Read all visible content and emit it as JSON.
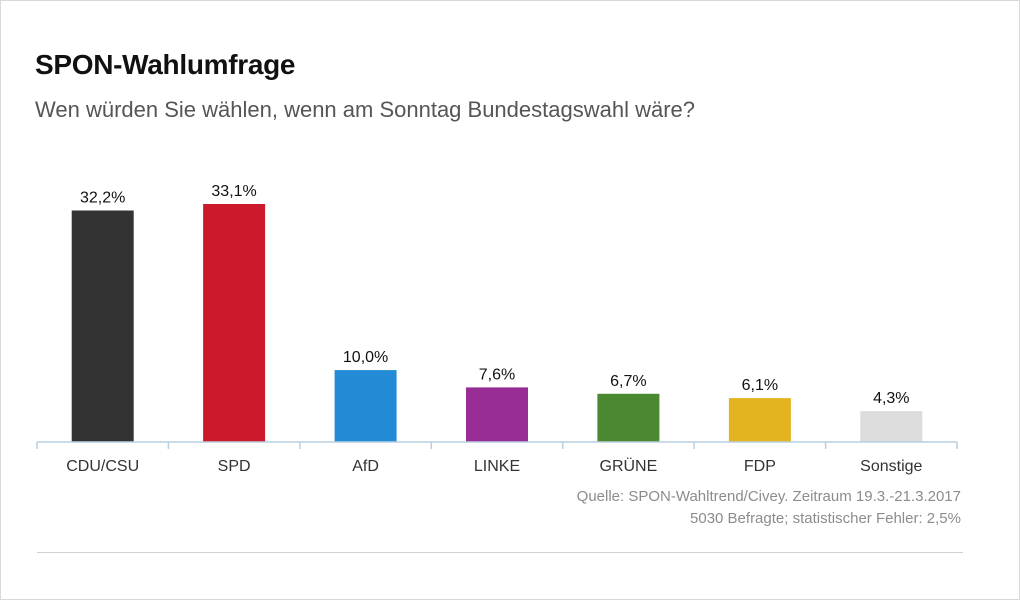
{
  "chart_data": {
    "type": "bar",
    "title": "SPON-Wahlumfrage",
    "subtitle": "Wen würden Sie wählen, wenn am Sonntag Bundestagswahl wäre?",
    "xlabel": "",
    "ylabel": "",
    "ylim": [
      0,
      33.1
    ],
    "grid": false,
    "categories": [
      "CDU/CSU",
      "SPD",
      "AfD",
      "LINKE",
      "GRÜNE",
      "FDP",
      "Sonstige"
    ],
    "values": [
      32.2,
      33.1,
      10.0,
      7.6,
      6.7,
      6.1,
      4.3
    ],
    "value_labels": [
      "32,2%",
      "33,1%",
      "10,0%",
      "7,6%",
      "6,7%",
      "6,1%",
      "4,3%"
    ],
    "colors": [
      "#333333",
      "#cc1a2c",
      "#238ad6",
      "#982d96",
      "#4b8832",
      "#e3b41f",
      "#dcdcdc"
    ]
  },
  "source": {
    "line1": "Quelle: SPON-Wahltrend/Civey. Zeitraum 19.3.-21.3.2017",
    "line2": "5030 Befragte; statistischer Fehler: 2,5%"
  }
}
